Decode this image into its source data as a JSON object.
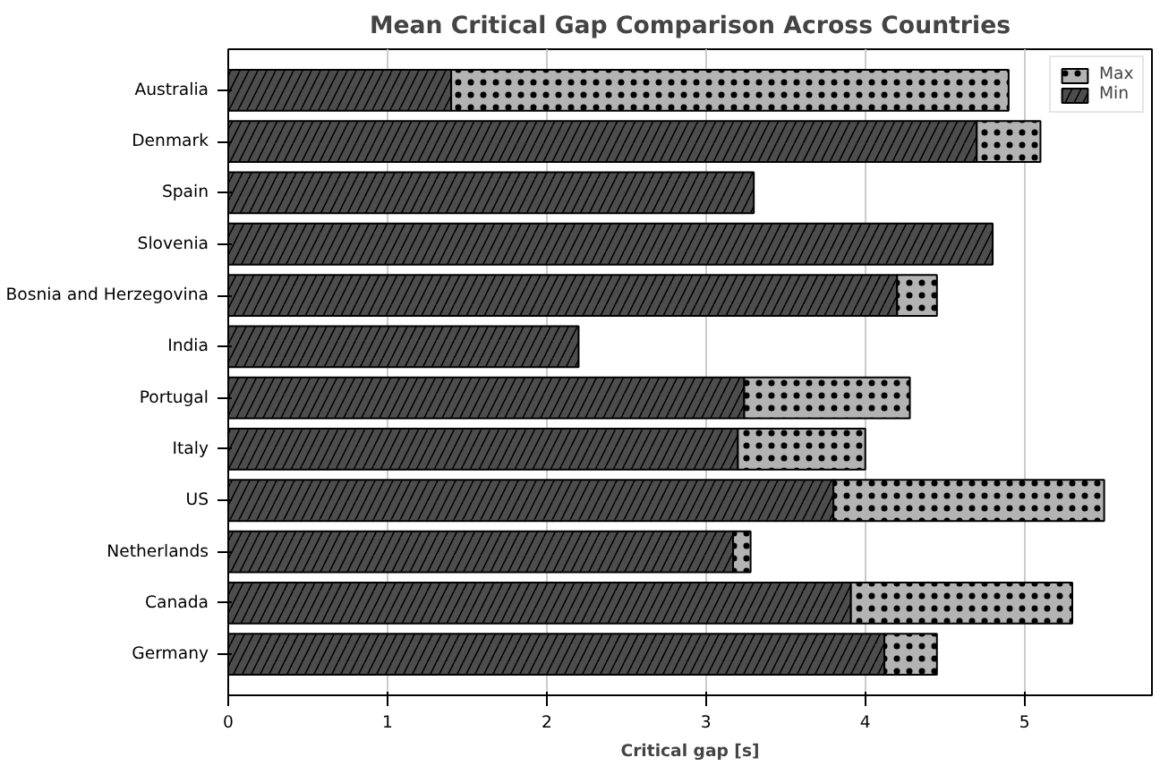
{
  "chart_data": {
    "type": "bar",
    "orientation": "horizontal",
    "stacked": true,
    "title": "Mean Critical Gap Comparison Across Countries",
    "xlabel": "Critical gap [s]",
    "categories": [
      "Australia",
      "Denmark",
      "Spain",
      "Slovenia",
      "Bosnia and Herzegovina",
      "India",
      "Portugal",
      "Italy",
      "US",
      "Netherlands",
      "Canada",
      "Germany"
    ],
    "series": [
      {
        "name": "Min",
        "color": "#4d4d4d",
        "values": [
          1.4,
          4.7,
          3.3,
          4.8,
          4.2,
          2.2,
          3.24,
          3.2,
          3.8,
          3.17,
          3.91,
          4.12
        ]
      },
      {
        "name": "Max",
        "color": "#b3b3b3",
        "values": [
          3.5,
          0.4,
          null,
          null,
          0.25,
          null,
          1.04,
          0.8,
          1.7,
          0.11,
          1.39,
          0.33
        ]
      }
    ],
    "xlim": [
      0,
      5.8
    ],
    "xticks": [
      0,
      1,
      2,
      3,
      4,
      5
    ],
    "grid": "x",
    "legend": "top right"
  }
}
